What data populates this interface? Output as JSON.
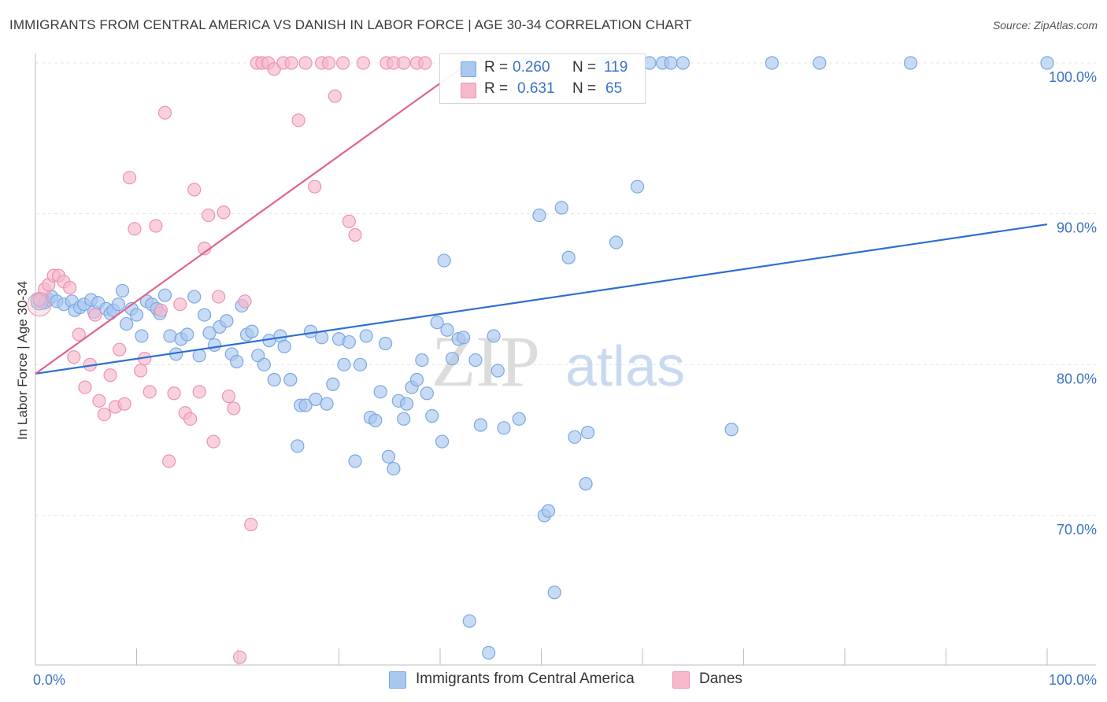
{
  "title": "IMMIGRANTS FROM CENTRAL AMERICA VS DANISH IN LABOR FORCE | AGE 30-34 CORRELATION CHART",
  "source": "Source: ZipAtlas.com",
  "watermark": {
    "zip": "ZIP",
    "atlas": "atlas"
  },
  "colors": {
    "blue_fill": "#a9c8f0",
    "blue_stroke": "#7aa7e0",
    "blue_line": "#2a6fd1",
    "pink_fill": "#f6b9cc",
    "pink_stroke": "#ee92ae",
    "pink_line": "#e0638f",
    "axis_label": "#3a72c4",
    "grid": "#e4e4e4"
  },
  "legend": {
    "r_label": "R =",
    "n_label": "N =",
    "series": [
      {
        "name": "Immigrants from Central America",
        "r": "0.260",
        "n": "119"
      },
      {
        "name": "Danes",
        "r": "0.631",
        "n": "65"
      }
    ]
  },
  "chart_data": {
    "type": "scatter",
    "title": "IMMIGRANTS FROM CENTRAL AMERICA VS DANISH IN LABOR FORCE | AGE 30-34 CORRELATION CHART",
    "ylabel": "In Labor Force | Age 30-34",
    "xlabel": "",
    "xlim": [
      0,
      100
    ],
    "ylim": [
      60,
      100
    ],
    "x_tick_labels": [
      "0.0%",
      "100.0%"
    ],
    "y_ticks": [
      {
        "value": 70,
        "label": "70.0%"
      },
      {
        "value": 80,
        "label": "80.0%"
      },
      {
        "value": 90,
        "label": "90.0%"
      },
      {
        "value": 100,
        "label": "100.0%"
      }
    ],
    "grid": true,
    "legend_position": "top-center",
    "series": [
      {
        "name": "Immigrants from Central America",
        "color": "#a9c8f0",
        "trend": {
          "x": [
            0,
            100
          ],
          "y": [
            79.4,
            89.3
          ]
        },
        "points": [
          [
            0.4,
            84.2
          ],
          [
            0.9,
            84.1
          ],
          [
            1.3,
            84.3
          ],
          [
            1.6,
            84.5
          ],
          [
            2.1,
            84.2
          ],
          [
            2.8,
            84.0
          ],
          [
            3.6,
            84.2
          ],
          [
            3.9,
            83.6
          ],
          [
            4.4,
            83.8
          ],
          [
            4.8,
            84.0
          ],
          [
            5.5,
            84.3
          ],
          [
            5.8,
            83.5
          ],
          [
            6.2,
            84.1
          ],
          [
            7.0,
            83.7
          ],
          [
            7.4,
            83.4
          ],
          [
            7.7,
            83.6
          ],
          [
            8.2,
            84.0
          ],
          [
            8.6,
            84.9
          ],
          [
            9.0,
            82.7
          ],
          [
            9.5,
            83.7
          ],
          [
            10.0,
            83.3
          ],
          [
            10.5,
            81.9
          ],
          [
            11.0,
            84.2
          ],
          [
            11.5,
            84.0
          ],
          [
            12.0,
            83.7
          ],
          [
            12.3,
            83.4
          ],
          [
            12.8,
            84.6
          ],
          [
            13.3,
            81.9
          ],
          [
            13.9,
            80.7
          ],
          [
            14.4,
            81.7
          ],
          [
            15.0,
            82.0
          ],
          [
            15.7,
            84.5
          ],
          [
            16.2,
            80.6
          ],
          [
            16.7,
            83.3
          ],
          [
            17.2,
            82.1
          ],
          [
            17.7,
            81.3
          ],
          [
            18.2,
            82.5
          ],
          [
            18.9,
            82.9
          ],
          [
            19.4,
            80.7
          ],
          [
            19.9,
            80.2
          ],
          [
            20.4,
            83.9
          ],
          [
            20.9,
            82.0
          ],
          [
            21.4,
            82.2
          ],
          [
            22.0,
            80.6
          ],
          [
            22.6,
            80.0
          ],
          [
            23.1,
            81.6
          ],
          [
            23.6,
            79.0
          ],
          [
            24.2,
            81.9
          ],
          [
            24.6,
            81.2
          ],
          [
            25.2,
            79.0
          ],
          [
            25.9,
            74.6
          ],
          [
            26.2,
            77.3
          ],
          [
            26.7,
            77.3
          ],
          [
            27.2,
            82.2
          ],
          [
            27.7,
            77.7
          ],
          [
            28.3,
            81.8
          ],
          [
            28.8,
            77.4
          ],
          [
            29.4,
            78.7
          ],
          [
            30.0,
            81.7
          ],
          [
            30.5,
            80.0
          ],
          [
            31.0,
            81.5
          ],
          [
            31.6,
            73.6
          ],
          [
            32.1,
            80.0
          ],
          [
            32.7,
            81.9
          ],
          [
            33.1,
            76.5
          ],
          [
            33.6,
            76.3
          ],
          [
            34.1,
            78.2
          ],
          [
            34.6,
            81.4
          ],
          [
            34.9,
            73.9
          ],
          [
            35.4,
            73.1
          ],
          [
            35.9,
            77.6
          ],
          [
            36.4,
            76.4
          ],
          [
            36.7,
            77.4
          ],
          [
            37.2,
            78.5
          ],
          [
            37.7,
            79.0
          ],
          [
            38.2,
            80.3
          ],
          [
            38.7,
            78.1
          ],
          [
            39.2,
            76.6
          ],
          [
            39.7,
            82.8
          ],
          [
            40.2,
            74.9
          ],
          [
            40.7,
            82.3
          ],
          [
            41.2,
            80.4
          ],
          [
            41.8,
            81.7
          ],
          [
            42.3,
            81.8
          ],
          [
            42.9,
            63.0
          ],
          [
            43.5,
            80.3
          ],
          [
            44.0,
            76.0
          ],
          [
            44.8,
            60.9
          ],
          [
            45.3,
            81.9
          ],
          [
            45.7,
            79.6
          ],
          [
            46.3,
            75.8
          ],
          [
            47.8,
            76.4
          ],
          [
            48.5,
            100.0
          ],
          [
            49.0,
            100.0
          ],
          [
            49.8,
            89.9
          ],
          [
            50.3,
            70.0
          ],
          [
            50.7,
            70.3
          ],
          [
            51.3,
            64.9
          ],
          [
            52.0,
            90.4
          ],
          [
            52.7,
            87.1
          ],
          [
            53.3,
            75.2
          ],
          [
            54.4,
            72.1
          ],
          [
            54.6,
            75.5
          ],
          [
            56.0,
            100.0
          ],
          [
            56.7,
            100.0
          ],
          [
            57.4,
            88.1
          ],
          [
            59.5,
            91.8
          ],
          [
            60.7,
            100.0
          ],
          [
            62.0,
            100.0
          ],
          [
            62.8,
            100.0
          ],
          [
            64.0,
            100.0
          ],
          [
            68.8,
            75.7
          ],
          [
            72.8,
            100.0
          ],
          [
            77.5,
            100.0
          ],
          [
            86.5,
            100.0
          ],
          [
            100.0,
            100.0
          ],
          [
            40.4,
            86.9
          ]
        ]
      },
      {
        "name": "Danes",
        "color": "#f6b9cc",
        "trend": {
          "x": [
            0,
            42.8
          ],
          "y": [
            79.4,
            100.0
          ]
        },
        "points": [
          [
            0.4,
            84.3
          ],
          [
            0.9,
            85.0
          ],
          [
            1.3,
            85.3
          ],
          [
            1.8,
            85.9
          ],
          [
            2.3,
            85.9
          ],
          [
            2.8,
            85.5
          ],
          [
            3.4,
            85.1
          ],
          [
            3.8,
            80.5
          ],
          [
            4.3,
            82.0
          ],
          [
            4.9,
            78.5
          ],
          [
            5.4,
            80.0
          ],
          [
            5.9,
            83.3
          ],
          [
            6.3,
            77.6
          ],
          [
            6.8,
            76.7
          ],
          [
            7.4,
            79.3
          ],
          [
            7.9,
            77.2
          ],
          [
            8.3,
            81.0
          ],
          [
            8.8,
            77.4
          ],
          [
            9.3,
            92.4
          ],
          [
            9.8,
            89.0
          ],
          [
            10.4,
            79.6
          ],
          [
            10.8,
            80.4
          ],
          [
            11.3,
            78.2
          ],
          [
            11.9,
            89.2
          ],
          [
            12.4,
            83.6
          ],
          [
            12.8,
            96.7
          ],
          [
            13.2,
            73.6
          ],
          [
            13.7,
            78.1
          ],
          [
            14.3,
            84.0
          ],
          [
            14.8,
            76.8
          ],
          [
            15.3,
            76.4
          ],
          [
            15.7,
            91.6
          ],
          [
            16.2,
            78.2
          ],
          [
            16.7,
            87.7
          ],
          [
            17.1,
            89.9
          ],
          [
            17.6,
            74.9
          ],
          [
            18.1,
            84.5
          ],
          [
            18.6,
            90.1
          ],
          [
            19.1,
            77.9
          ],
          [
            19.6,
            77.1
          ],
          [
            20.2,
            60.6
          ],
          [
            20.7,
            84.2
          ],
          [
            21.3,
            69.4
          ],
          [
            21.9,
            100.0
          ],
          [
            22.4,
            100.0
          ],
          [
            23.0,
            100.0
          ],
          [
            23.6,
            99.6
          ],
          [
            24.5,
            100.0
          ],
          [
            25.3,
            100.0
          ],
          [
            26.0,
            96.2
          ],
          [
            26.7,
            100.0
          ],
          [
            27.6,
            91.8
          ],
          [
            28.3,
            100.0
          ],
          [
            29.0,
            100.0
          ],
          [
            29.6,
            97.8
          ],
          [
            30.4,
            100.0
          ],
          [
            31.0,
            89.5
          ],
          [
            31.6,
            88.6
          ],
          [
            32.4,
            100.0
          ],
          [
            34.7,
            100.0
          ],
          [
            35.4,
            100.0
          ],
          [
            36.4,
            100.0
          ],
          [
            37.7,
            100.0
          ],
          [
            38.5,
            100.0
          ],
          [
            42.3,
            100.0
          ]
        ]
      }
    ]
  }
}
